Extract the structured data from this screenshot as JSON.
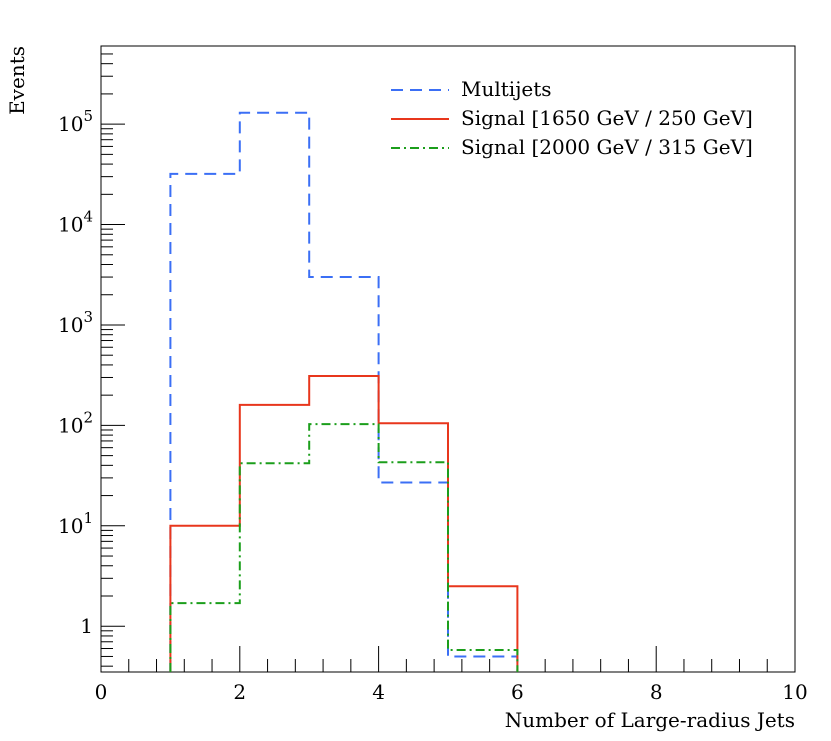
{
  "chart_data": {
    "type": "histogram-step",
    "xlabel": "Number of Large-radius Jets",
    "ylabel": "Events",
    "xlim": [
      0,
      10
    ],
    "ylim": [
      0.35,
      600000
    ],
    "yscale": "log",
    "grid": false,
    "legend_position": "top-right",
    "x_ticks": [
      0,
      2,
      4,
      6,
      8,
      10
    ],
    "y_ticks": [
      {
        "value": 1,
        "base": "1",
        "exp": ""
      },
      {
        "value": 10,
        "base": "10",
        "exp": "1"
      },
      {
        "value": 100,
        "base": "10",
        "exp": "2"
      },
      {
        "value": 1000,
        "base": "10",
        "exp": "3"
      },
      {
        "value": 10000,
        "base": "10",
        "exp": "4"
      },
      {
        "value": 100000,
        "base": "10",
        "exp": "5"
      }
    ],
    "bin_edges": [
      1,
      2,
      3,
      4,
      5,
      6
    ],
    "series": [
      {
        "name": "Multijets",
        "color": "#3b6ff5",
        "style": "dashed",
        "values": [
          32000,
          130000,
          3000,
          27,
          0.5
        ]
      },
      {
        "name": "Signal [1650 GeV / 250 GeV]",
        "color": "#e8361c",
        "style": "solid",
        "values": [
          10,
          160,
          310,
          105,
          2.5
        ]
      },
      {
        "name": "Signal [2000 GeV / 315 GeV]",
        "color": "#1b9e1b",
        "style": "dashdot",
        "values": [
          1.7,
          42,
          103,
          43,
          0.58
        ]
      }
    ]
  }
}
